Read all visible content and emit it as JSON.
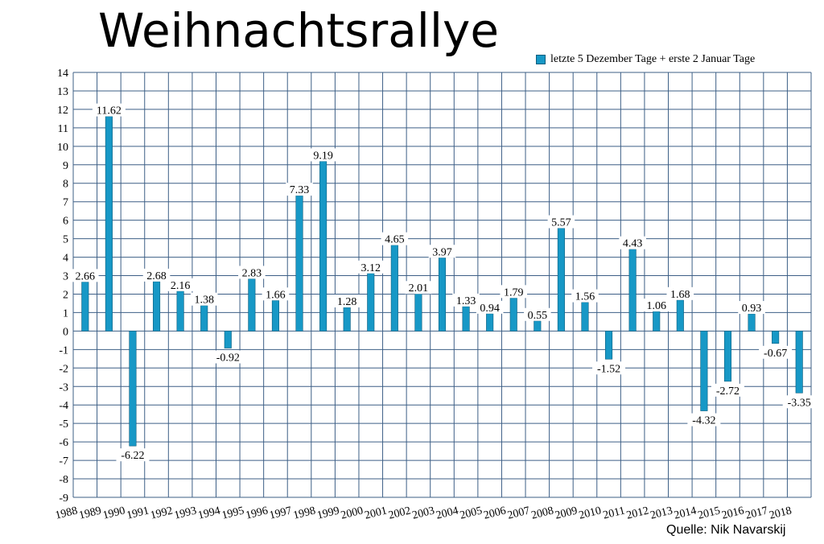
{
  "title": "Weihnachtsrallye",
  "source": "Quelle: Nik Navarskij",
  "colors": {
    "bar": "#1798c6",
    "bar_edge": "#0b5e7e",
    "grid": "#3d5f86",
    "text": "#000000"
  },
  "chart_data": {
    "type": "bar",
    "title": "Weihnachtsrallye",
    "xlabel": "",
    "ylabel": "",
    "ylim": [
      -9,
      14
    ],
    "yticks": [
      14,
      13,
      12,
      11,
      10,
      9,
      8,
      7,
      6,
      5,
      4,
      3,
      2,
      1,
      0,
      -1,
      -2,
      -3,
      -4,
      -5,
      -6,
      -7,
      -8,
      -9
    ],
    "grid": true,
    "legend_position": "top-right",
    "categories": [
      "1988",
      "1989",
      "1990",
      "1991",
      "1992",
      "1993",
      "1994",
      "1995",
      "1996",
      "1997",
      "1998",
      "1999",
      "2000",
      "2001",
      "2002",
      "2003",
      "2004",
      "2005",
      "2006",
      "2007",
      "2008",
      "2009",
      "2010",
      "2011",
      "2012",
      "2013",
      "2014",
      "2015",
      "2016",
      "2017",
      "2018"
    ],
    "series": [
      {
        "name": "letzte 5 Dezember Tage + erste 2 Januar Tage",
        "values": [
          2.66,
          11.62,
          -6.22,
          2.68,
          2.16,
          1.38,
          -0.92,
          2.83,
          1.66,
          7.33,
          9.19,
          1.28,
          3.12,
          4.65,
          2.01,
          3.97,
          1.33,
          0.94,
          1.79,
          0.55,
          5.57,
          1.56,
          -1.52,
          4.43,
          1.06,
          1.68,
          -4.32,
          -2.72,
          0.93,
          -0.67,
          -3.35
        ],
        "labels": [
          "2.66",
          "11.62",
          "-6.22",
          "2.68",
          "2.16",
          "1.38",
          "-0.92",
          "2.83",
          "1.66",
          "7.33",
          "9.19",
          "1.28",
          "3.12",
          "4.65",
          "2.01",
          "3.97",
          "1.33",
          "0.94",
          "1.79",
          "0.55",
          "5.57",
          "1.56",
          "-1.52",
          "4.43",
          "1.06",
          "1.68",
          "-4.32",
          "-2.72",
          "0.93",
          "-0.67",
          "-3.35"
        ]
      }
    ]
  }
}
